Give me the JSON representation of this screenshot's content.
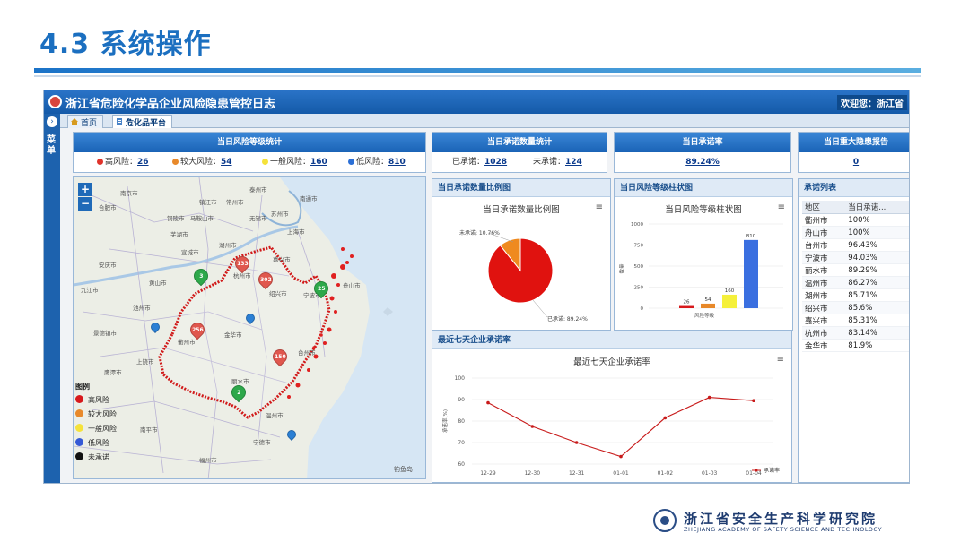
{
  "slide": {
    "title": "4.3 系统操作"
  },
  "app": {
    "title": "浙江省危险化学品企业风险隐患管控日志",
    "welcome": "欢迎您：浙江省",
    "side_label": "菜单",
    "tabs": [
      {
        "label": "首页"
      },
      {
        "label": "危化品平台"
      }
    ]
  },
  "risk_stats": {
    "title": "当日风险等级统计",
    "items": [
      {
        "label": "高风险：",
        "value": "26",
        "color": "#e0332b"
      },
      {
        "label": "较大风险：",
        "value": "54",
        "color": "#e8892a"
      },
      {
        "label": "一般风险：",
        "value": "160",
        "color": "#f5e23a"
      },
      {
        "label": "低风险：",
        "value": "810",
        "color": "#2b6fd6"
      }
    ]
  },
  "promise_stats": {
    "title": "当日承诺数量统计",
    "done_label": "已承诺：",
    "done_value": "1028",
    "undone_label": "未承诺：",
    "undone_value": "124"
  },
  "rate_stats": {
    "title": "当日承诺率",
    "value": "89.24%"
  },
  "report_stats": {
    "title": "当日重大隐患报告",
    "value": "0"
  },
  "map": {
    "cities": [
      "南京市",
      "常州市",
      "苏州市",
      "上海市",
      "无锡市",
      "镇江市",
      "合肥市",
      "芜湖市",
      "宣城市",
      "湖州市",
      "杭州市",
      "嘉兴市",
      "绍兴市",
      "宁波市",
      "舟山市",
      "金华市",
      "衢州市",
      "丽水市",
      "温州市",
      "台州市",
      "黄山市",
      "景德镇市",
      "上饶市",
      "南平市",
      "宁德市",
      "福州市",
      "鹰潭市",
      "安庆市",
      "池州市",
      "铜陵市",
      "马鞍山市",
      "泰州市",
      "南通市",
      "九江市"
    ],
    "markers": [
      "133",
      "302",
      "25",
      "3",
      "256",
      "150",
      "2"
    ],
    "legend_title": "图例",
    "legend": [
      {
        "label": "高风险",
        "color": "#d7191c"
      },
      {
        "label": "较大风险",
        "color": "#e8892a"
      },
      {
        "label": "一般风险",
        "color": "#f5e23a"
      },
      {
        "label": "低风险",
        "color": "#3559d6"
      },
      {
        "label": "未承诺",
        "color": "#111111"
      }
    ],
    "island_label": "钓鱼岛",
    "zoom_in": "+",
    "zoom_out": "−"
  },
  "pie": {
    "panel_title": "当日承诺数量比例图",
    "chart_title": "当日承诺数量比例图",
    "undone_label": "未承诺: 10.76%",
    "done_label": "已承诺: 89.24%",
    "menu": "≡"
  },
  "bar": {
    "panel_title": "当日风险等级柱状图",
    "chart_title": "当日风险等级柱状图",
    "ylabel": "数量",
    "xlabel": "风险等级",
    "menu": "≡"
  },
  "line": {
    "panel_title": "最近七天企业承诺率",
    "chart_title": "最近七天企业承诺率",
    "ylabel": "承诺率(%)",
    "legend": "承诺率",
    "menu": "≡"
  },
  "promise_list": {
    "panel_title": "承诺列表",
    "col_area": "地区",
    "col_rate": "当日承诺...",
    "rows": [
      {
        "area": "衢州市",
        "rate": "100%"
      },
      {
        "area": "舟山市",
        "rate": "100%"
      },
      {
        "area": "台州市",
        "rate": "96.43%"
      },
      {
        "area": "宁波市",
        "rate": "94.03%"
      },
      {
        "area": "丽水市",
        "rate": "89.29%"
      },
      {
        "area": "温州市",
        "rate": "86.27%"
      },
      {
        "area": "湖州市",
        "rate": "85.71%"
      },
      {
        "area": "绍兴市",
        "rate": "85.6%"
      },
      {
        "area": "嘉兴市",
        "rate": "85.31%"
      },
      {
        "area": "杭州市",
        "rate": "83.14%"
      },
      {
        "area": "金华市",
        "rate": "81.9%"
      }
    ]
  },
  "footer": {
    "org_cn": "浙江省安全生产科学研究院",
    "org_en": "ZHEJIANG ACADEMY OF SAFETY SCIENCE AND TECHNOLOGY"
  },
  "chart_data": [
    {
      "type": "pie",
      "title": "当日承诺数量比例图",
      "slices": [
        {
          "name": "已承诺",
          "value": 89.24,
          "color": "#e0120f"
        },
        {
          "name": "未承诺",
          "value": 10.76,
          "color": "#ef8a1f"
        }
      ]
    },
    {
      "type": "bar",
      "title": "当日风险等级柱状图",
      "xlabel": "风险等级",
      "ylabel": "数量",
      "ylim": [
        0,
        1000
      ],
      "yticks": [
        0,
        250,
        500,
        750,
        1000
      ],
      "categories": [
        "高风险",
        "较大风险",
        "一般风险",
        "低风险"
      ],
      "values": [
        26,
        54,
        160,
        810
      ],
      "colors": [
        "#d7191c",
        "#e8892a",
        "#f5f03a",
        "#3a6fe0"
      ]
    },
    {
      "type": "line",
      "title": "最近七天企业承诺率",
      "ylabel": "承诺率(%)",
      "ylim": [
        60,
        100
      ],
      "yticks": [
        60,
        70,
        80,
        90,
        100
      ],
      "x": [
        "12-29",
        "12-30",
        "12-31",
        "01-01",
        "01-02",
        "01-03",
        "01-04"
      ],
      "series": [
        {
          "name": "承诺率",
          "values": [
            88.5,
            77.5,
            70,
            63.5,
            81.5,
            91,
            89.5
          ],
          "color": "#c81a1a"
        }
      ]
    }
  ]
}
